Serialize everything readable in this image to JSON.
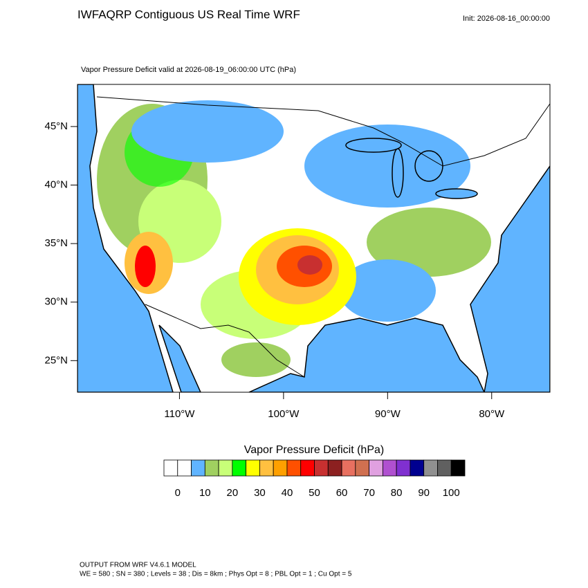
{
  "header": {
    "title": "IWFAQRP Contiguous US Real Time WRF",
    "init": "Init: 2026-08-16_00:00:00",
    "subtitle": "Vapor Pressure Deficit valid at 2026-08-19_06:00:00 UTC   (hPa)"
  },
  "map": {
    "xlim": [
      -119.8,
      -74.4
    ],
    "ylim": [
      22.3,
      48.6
    ],
    "xticks": [
      {
        "value": -110,
        "label": "110°W"
      },
      {
        "value": -100,
        "label": "100°W"
      },
      {
        "value": -90,
        "label": "90°W"
      },
      {
        "value": -80,
        "label": "80°W"
      }
    ],
    "yticks": [
      {
        "value": 45,
        "label": "45°N"
      },
      {
        "value": 40,
        "label": "40°N"
      },
      {
        "value": 35,
        "label": "35°N"
      },
      {
        "value": 30,
        "label": "30°N"
      },
      {
        "value": 25,
        "label": "25°N"
      }
    ]
  },
  "colorbar": {
    "title": "Vapor Pressure Deficit  (hPa)",
    "colors": [
      "#ffffff",
      "#ffffff",
      "#60b4ff",
      "#a0d060",
      "#c8ff78",
      "#00ff00",
      "#ffff00",
      "#ffc040",
      "#ffa000",
      "#ff5000",
      "#ff0000",
      "#c83030",
      "#8c2020",
      "#e87060",
      "#d07050",
      "#e0a0e0",
      "#b050d0",
      "#8030d0",
      "#000090",
      "#909090",
      "#606060",
      "#000000"
    ],
    "ticks": [
      0,
      10,
      20,
      30,
      40,
      50,
      60,
      70,
      80,
      90,
      100
    ]
  },
  "footer": {
    "line1": "OUTPUT FROM WRF V4.6.1 MODEL",
    "line2": "WE = 580 ; SN = 380 ; Levels = 38 ; Dis = 8km ; Phys Opt = 8 ; PBL Opt = 1 ; Cu Opt = 5"
  }
}
